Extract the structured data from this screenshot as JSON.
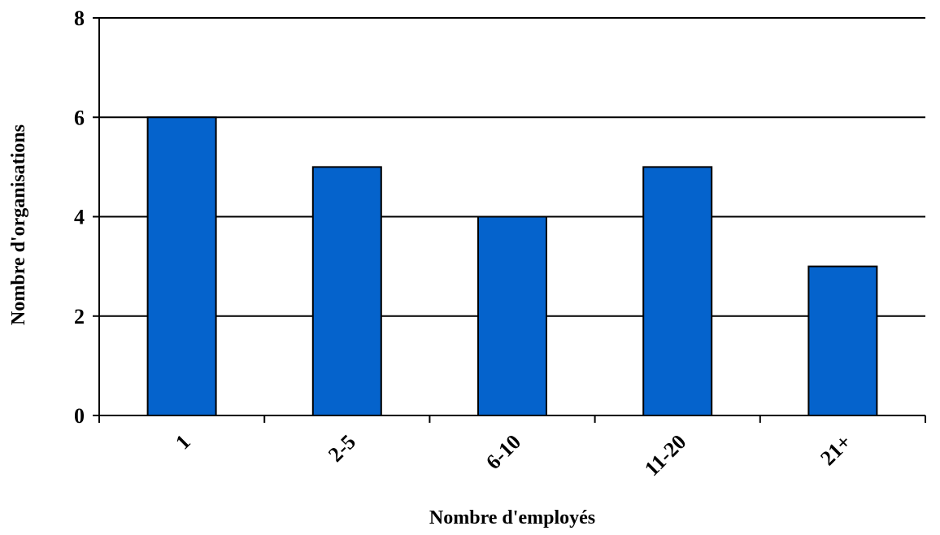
{
  "chart_data": {
    "type": "bar",
    "categories": [
      "1",
      "2-5",
      "6-10",
      "11-20",
      "21+"
    ],
    "values": [
      6,
      5,
      4,
      5,
      3
    ],
    "xlabel": "Nombre d'employés",
    "ylabel": "Nombre d'organisations",
    "ylim": [
      0,
      8
    ],
    "yticks": [
      "0",
      "2",
      "4",
      "6",
      "8"
    ],
    "grid": true,
    "legend": "none",
    "bar_color": "#0563CC"
  }
}
